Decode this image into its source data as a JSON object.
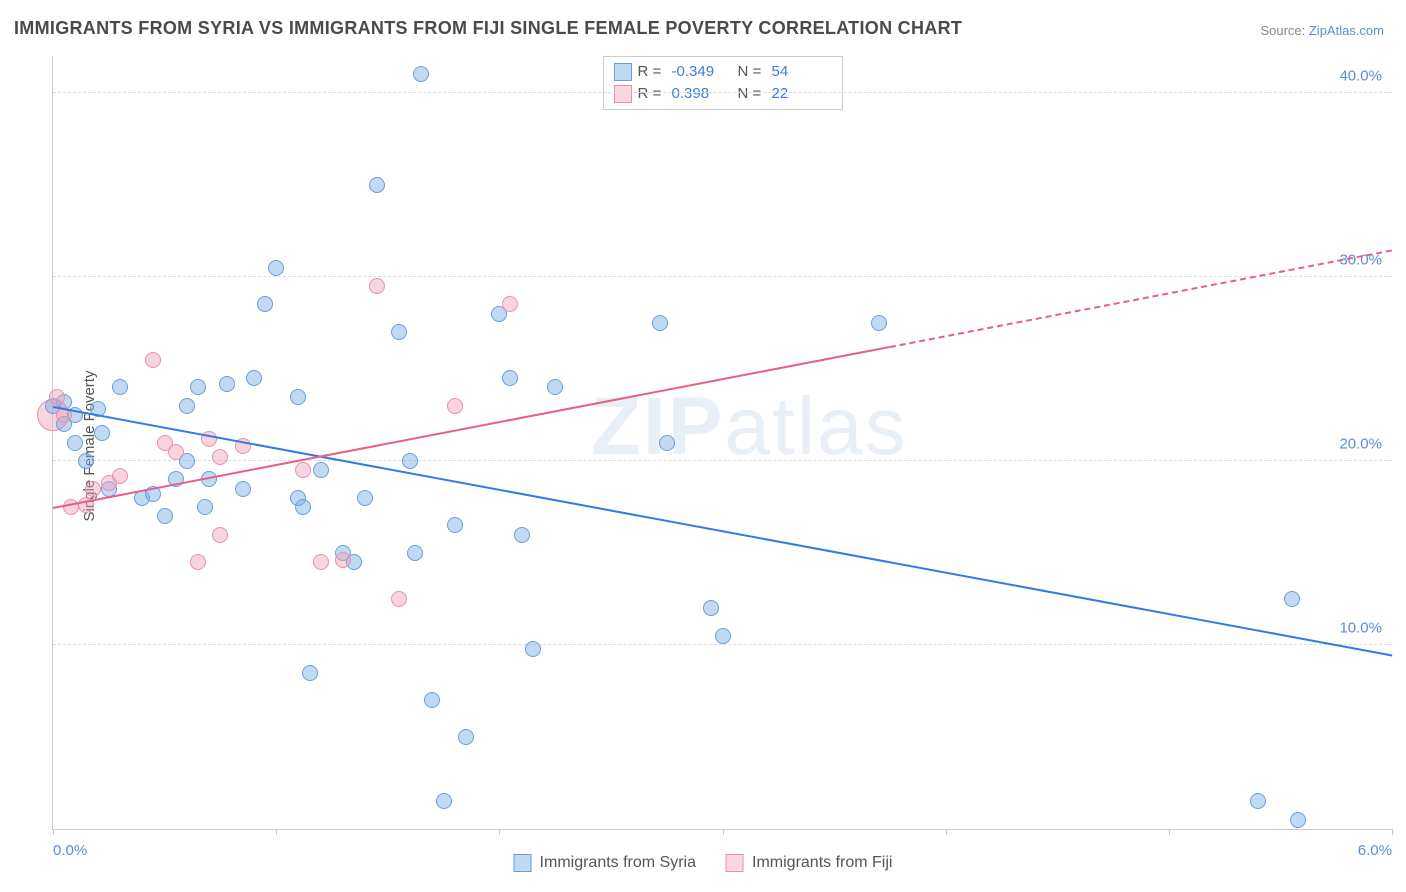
{
  "title": "IMMIGRANTS FROM SYRIA VS IMMIGRANTS FROM FIJI SINGLE FEMALE POVERTY CORRELATION CHART",
  "source_label": "Source: ",
  "source_value": "ZipAtlas.com",
  "y_axis_label": "Single Female Poverty",
  "watermark_bold": "ZIP",
  "watermark_thin": "atlas",
  "chart": {
    "type": "scatter",
    "xlim": [
      0.0,
      6.0
    ],
    "ylim": [
      0.0,
      42.0
    ],
    "x_ticks": [
      0.0,
      1.0,
      2.0,
      3.0,
      4.0,
      5.0,
      6.0
    ],
    "x_tick_labels_shown": {
      "0": "0.0%",
      "6": "6.0%"
    },
    "y_gridlines": [
      10.0,
      20.0,
      30.0,
      40.0
    ],
    "y_tick_labels": [
      "10.0%",
      "20.0%",
      "30.0%",
      "40.0%"
    ],
    "background_color": "#ffffff",
    "grid_color": "#dddddd",
    "axis_color": "#cccccc",
    "series": [
      {
        "name": "Immigrants from Syria",
        "legend_label": "Immigrants from Syria",
        "marker_fill": "rgba(120,170,230,0.45)",
        "marker_stroke": "#6a9fd8",
        "marker_radius": 8,
        "stats": {
          "R": "-0.349",
          "N": "54"
        },
        "swatch_fill": "rgba(140,185,235,0.55)",
        "swatch_border": "#6a9fd8",
        "trend": {
          "color": "#2f7de0",
          "x1": 0.0,
          "y1": 23.0,
          "x2": 6.0,
          "y2": 9.5,
          "solid_to_x": 6.0
        },
        "points": [
          [
            0.0,
            23.0
          ],
          [
            0.05,
            23.2
          ],
          [
            0.05,
            22.0
          ],
          [
            0.1,
            22.5
          ],
          [
            0.1,
            21.0
          ],
          [
            0.15,
            20.0
          ],
          [
            0.2,
            22.8
          ],
          [
            0.22,
            21.5
          ],
          [
            0.25,
            18.5
          ],
          [
            0.3,
            24.0
          ],
          [
            0.4,
            18.0
          ],
          [
            0.45,
            18.2
          ],
          [
            0.5,
            17.0
          ],
          [
            0.55,
            19.0
          ],
          [
            0.6,
            20.0
          ],
          [
            0.6,
            23.0
          ],
          [
            0.65,
            24.0
          ],
          [
            0.68,
            17.5
          ],
          [
            0.7,
            19.0
          ],
          [
            0.78,
            24.2
          ],
          [
            0.85,
            18.5
          ],
          [
            0.9,
            24.5
          ],
          [
            0.95,
            28.5
          ],
          [
            1.0,
            30.5
          ],
          [
            1.1,
            18.0
          ],
          [
            1.1,
            23.5
          ],
          [
            1.12,
            17.5
          ],
          [
            1.15,
            8.5
          ],
          [
            1.2,
            19.5
          ],
          [
            1.3,
            15.0
          ],
          [
            1.35,
            14.5
          ],
          [
            1.4,
            18.0
          ],
          [
            1.45,
            35.0
          ],
          [
            1.55,
            27.0
          ],
          [
            1.6,
            20.0
          ],
          [
            1.62,
            15.0
          ],
          [
            1.65,
            41.0
          ],
          [
            1.7,
            7.0
          ],
          [
            1.75,
            1.5
          ],
          [
            1.8,
            16.5
          ],
          [
            1.85,
            5.0
          ],
          [
            2.0,
            28.0
          ],
          [
            2.05,
            24.5
          ],
          [
            2.1,
            16.0
          ],
          [
            2.15,
            9.8
          ],
          [
            2.25,
            24.0
          ],
          [
            2.72,
            27.5
          ],
          [
            2.75,
            21.0
          ],
          [
            2.95,
            12.0
          ],
          [
            3.0,
            10.5
          ],
          [
            3.7,
            27.5
          ],
          [
            5.4,
            1.5
          ],
          [
            5.55,
            12.5
          ],
          [
            5.58,
            0.5
          ]
        ]
      },
      {
        "name": "Immigrants from Fiji",
        "legend_label": "Immigrants from Fiji",
        "marker_fill": "rgba(240,160,185,0.45)",
        "marker_stroke": "#e890ac",
        "marker_radius": 8,
        "stats": {
          "R": "0.398",
          "N": "22"
        },
        "swatch_fill": "rgba(245,180,200,0.55)",
        "swatch_border": "#e890ac",
        "trend": {
          "color": "#e85f8a",
          "x1": 0.0,
          "y1": 17.5,
          "x2": 6.0,
          "y2": 31.5,
          "solid_to_x": 3.75
        },
        "points": [
          [
            0.02,
            23.5
          ],
          [
            0.05,
            22.5
          ],
          [
            0.08,
            17.5
          ],
          [
            0.15,
            17.6
          ],
          [
            0.18,
            18.5
          ],
          [
            0.25,
            18.8
          ],
          [
            0.3,
            19.2
          ],
          [
            0.45,
            25.5
          ],
          [
            0.5,
            21.0
          ],
          [
            0.55,
            20.5
          ],
          [
            0.65,
            14.5
          ],
          [
            0.7,
            21.2
          ],
          [
            0.75,
            16.0
          ],
          [
            0.75,
            20.2
          ],
          [
            0.85,
            20.8
          ],
          [
            1.12,
            19.5
          ],
          [
            1.2,
            14.5
          ],
          [
            1.3,
            14.6
          ],
          [
            1.45,
            29.5
          ],
          [
            1.55,
            12.5
          ],
          [
            1.8,
            23.0
          ],
          [
            2.05,
            28.5
          ]
        ],
        "big_point": {
          "x": 0.0,
          "y": 22.5,
          "r": 16
        }
      }
    ]
  },
  "bottom_legend": [
    {
      "label": "Immigrants from Syria",
      "fill": "rgba(140,185,235,0.55)",
      "border": "#6a9fd8"
    },
    {
      "label": "Immigrants from Fiji",
      "fill": "rgba(245,180,200,0.55)",
      "border": "#e890ac"
    }
  ],
  "stats_legend_labels": {
    "R": "R =",
    "N": "N ="
  }
}
